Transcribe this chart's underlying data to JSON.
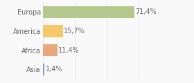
{
  "categories": [
    "Europa",
    "America",
    "Africa",
    "Asia"
  ],
  "values": [
    71.4,
    15.7,
    11.4,
    1.4
  ],
  "labels": [
    "71,4%",
    "15,7%",
    "11,4%",
    "1,4%"
  ],
  "bar_colors": [
    "#b5c98e",
    "#f5c96a",
    "#e8a87c",
    "#7b9fd4"
  ],
  "background_color": "#f9f9f9",
  "xlim": [
    0,
    100
  ],
  "label_fontsize": 7,
  "tick_fontsize": 7,
  "grid_color": "#dddddd",
  "text_color": "#666666"
}
